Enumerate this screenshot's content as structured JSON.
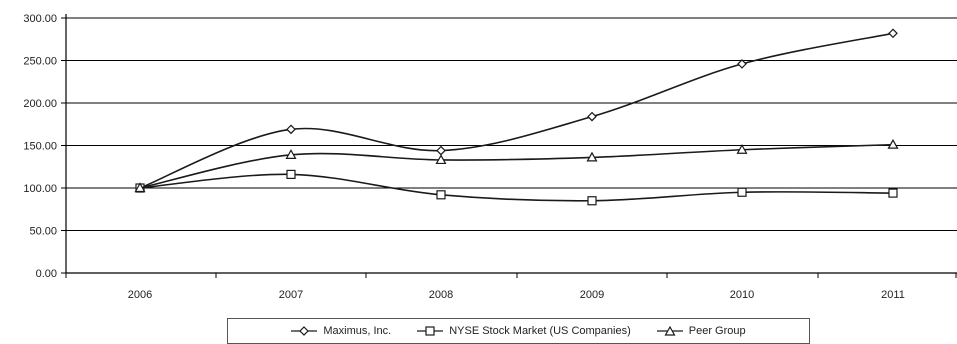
{
  "chart_data": {
    "type": "line",
    "title": "",
    "xlabel": "",
    "ylabel": "",
    "x": [
      "2006",
      "2007",
      "2008",
      "2009",
      "2010",
      "2011"
    ],
    "ylim": [
      0,
      300
    ],
    "yticks": [
      "0.00",
      "50.00",
      "100.00",
      "150.00",
      "200.00",
      "250.00",
      "300.00"
    ],
    "grid": "horizontal",
    "legend_position": "bottom",
    "series": [
      {
        "name": "Maximus, Inc.",
        "marker": "diamond",
        "values": [
          100,
          169,
          144,
          184,
          246,
          282
        ]
      },
      {
        "name": "NYSE Stock Market (US Companies)",
        "marker": "square",
        "values": [
          100,
          116,
          92,
          85,
          95,
          94
        ]
      },
      {
        "name": "Peer Group",
        "marker": "triangle",
        "values": [
          100,
          139,
          133,
          136,
          145,
          151
        ]
      }
    ],
    "line_color": "#1a1a1a",
    "grid_color": "#000000"
  }
}
